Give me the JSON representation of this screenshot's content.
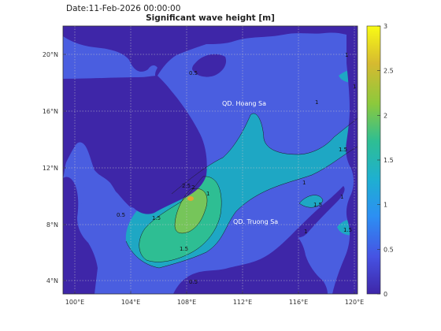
{
  "header": {
    "date_text": "Date:11-Feb-2026 00:00:00",
    "title": "Significant wave height [m]"
  },
  "map": {
    "lon_ticks": [
      "100°E",
      "104°E",
      "108°E",
      "112°E",
      "116°E",
      "120°E"
    ],
    "lat_ticks": [
      "20°N",
      "16°N",
      "12°N",
      "8°N",
      "4°N"
    ],
    "place_labels": [
      "QD. Hoang Sa",
      "QD. Truong Sa"
    ],
    "contour_labels": [
      "1",
      "1",
      "1",
      "1.5",
      "2",
      "2.5",
      "1.5",
      "0.5",
      "1.5",
      "0.5",
      "1",
      "1",
      "1.5",
      "1",
      "0.5",
      "1",
      "1.5"
    ],
    "grid": true
  },
  "colorbar": {
    "ticks": [
      "3",
      "2.5",
      "2",
      "1.5",
      "1",
      "0.5",
      "0"
    ],
    "colormap": [
      "#3e26a8",
      "#4653e3",
      "#2c8ff3",
      "#1eb0d0",
      "#2ebe93",
      "#8cc93c",
      "#d6ba30",
      "#f9fb14"
    ]
  },
  "colors": {
    "land": "#3e26a8",
    "sea_low": "#4a5ee0",
    "sea_mid": "#1ea7c4",
    "sea_high": "#76c55a",
    "peak": "#e6a530"
  }
}
